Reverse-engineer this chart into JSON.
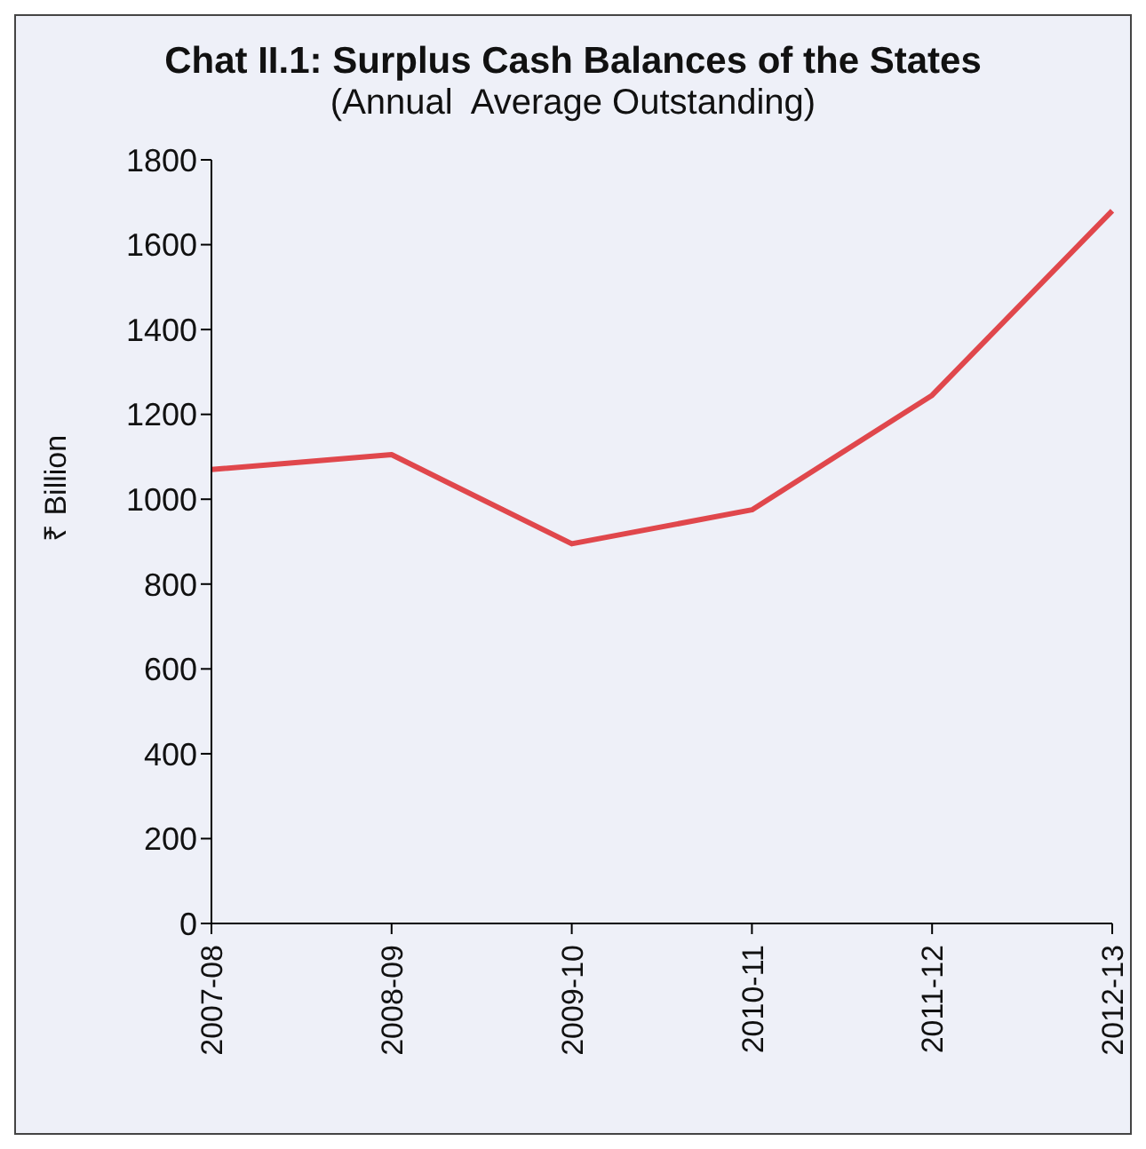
{
  "chart_data": {
    "type": "line",
    "title": "Chat II.1: Surplus Cash Balances of the States",
    "subtitle": "(Annual  Average Outstanding)",
    "ylabel": "₹ Billion",
    "categories": [
      "2007-08",
      "2008-09",
      "2009-10",
      "2010-11",
      "2011-12",
      "2012-13"
    ],
    "series": [
      {
        "color": "#e0474c",
        "values": [
          1070,
          1105,
          895,
          975,
          1245,
          1680
        ]
      }
    ],
    "ylim": [
      0,
      1800
    ],
    "yticks": [
      0,
      200,
      400,
      600,
      800,
      1000,
      1200,
      1400,
      1600,
      1800
    ],
    "grid": false,
    "legend": false,
    "marker": "none",
    "line_style": "solid"
  }
}
